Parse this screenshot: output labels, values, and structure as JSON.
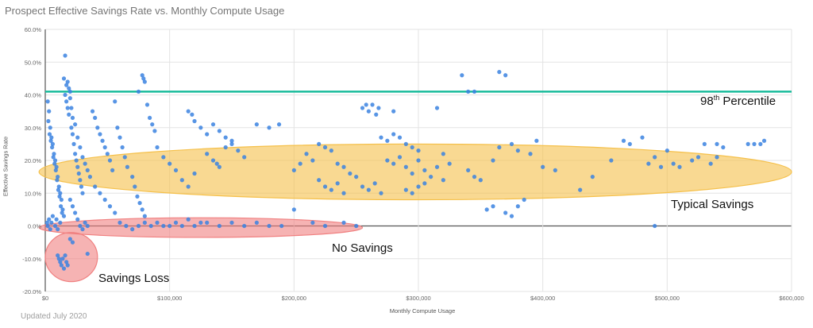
{
  "chart_data": {
    "type": "scatter",
    "title": "Prospect Effective Savings Rate vs. Monthly Compute Usage",
    "xlabel": "Monthly Compute Usage",
    "ylabel": "Effective Savings Rate",
    "xlim": [
      0,
      600000
    ],
    "ylim": [
      -20,
      60
    ],
    "x_ticks": [
      "$0",
      "$100,000",
      "$200,000",
      "$300,000",
      "$400,000",
      "$500,000",
      "$600,000"
    ],
    "y_ticks": [
      "60.0%",
      "50.0%",
      "40.0%",
      "30.0%",
      "20.0%",
      "10.0%",
      "0.0%",
      "-10.0%",
      "-20.0%"
    ],
    "grid": true,
    "point_color": "#3b82e0",
    "reference_line": {
      "y": 41,
      "color": "#1abc9c"
    },
    "annotations": {
      "percentile": {
        "base": "98",
        "sup": "th",
        "rest": " Percentile"
      },
      "typical": "Typical Savings",
      "none": "No Savings",
      "loss": "Savings Loss"
    },
    "regions": [
      {
        "label": "Typical Savings",
        "color": "#f5c04a",
        "x": [
          -5000,
          600000
        ],
        "y": [
          8,
          25
        ]
      },
      {
        "label": "No Savings",
        "color": "#f08080",
        "x": [
          -5000,
          255000
        ],
        "y": [
          -3.5,
          2.5
        ]
      },
      {
        "label": "Savings Loss",
        "color": "#f08080",
        "x": [
          0,
          42000
        ],
        "y": [
          -17,
          -2
        ]
      }
    ],
    "points": [
      [
        2000,
        38
      ],
      [
        3000,
        35
      ],
      [
        4000,
        30
      ],
      [
        5000,
        27
      ],
      [
        6000,
        25
      ],
      [
        7000,
        22
      ],
      [
        8000,
        20
      ],
      [
        9000,
        18
      ],
      [
        10000,
        15
      ],
      [
        11000,
        12
      ],
      [
        12000,
        10
      ],
      [
        13000,
        8
      ],
      [
        14000,
        5
      ],
      [
        15000,
        3
      ],
      [
        2500,
        32
      ],
      [
        3500,
        28
      ],
      [
        4500,
        26
      ],
      [
        5500,
        24
      ],
      [
        6500,
        21
      ],
      [
        7500,
        19
      ],
      [
        8500,
        17
      ],
      [
        9500,
        14
      ],
      [
        10500,
        11
      ],
      [
        11500,
        9
      ],
      [
        12500,
        6
      ],
      [
        13500,
        4
      ],
      [
        1500,
        1
      ],
      [
        2000,
        0
      ],
      [
        3000,
        2
      ],
      [
        4000,
        -1
      ],
      [
        5000,
        1
      ],
      [
        6000,
        3
      ],
      [
        8000,
        0
      ],
      [
        9000,
        2
      ],
      [
        10000,
        -1
      ],
      [
        12000,
        1
      ],
      [
        16000,
        40
      ],
      [
        17000,
        38
      ],
      [
        18000,
        36
      ],
      [
        19000,
        34
      ],
      [
        20000,
        41
      ],
      [
        15000,
        45
      ],
      [
        16000,
        52
      ],
      [
        17000,
        43
      ],
      [
        18000,
        44
      ],
      [
        19000,
        42
      ],
      [
        20000,
        39
      ],
      [
        21000,
        30
      ],
      [
        22000,
        28
      ],
      [
        23000,
        25
      ],
      [
        24000,
        22
      ],
      [
        25000,
        20
      ],
      [
        26000,
        18
      ],
      [
        27000,
        16
      ],
      [
        28000,
        14
      ],
      [
        29000,
        12
      ],
      [
        30000,
        10
      ],
      [
        21000,
        36
      ],
      [
        22000,
        33
      ],
      [
        24000,
        31
      ],
      [
        26000,
        27
      ],
      [
        28000,
        24
      ],
      [
        30000,
        21
      ],
      [
        32000,
        19
      ],
      [
        34000,
        17
      ],
      [
        36000,
        15
      ],
      [
        20000,
        8
      ],
      [
        22000,
        6
      ],
      [
        24000,
        4
      ],
      [
        26000,
        2
      ],
      [
        28000,
        0
      ],
      [
        30000,
        -1
      ],
      [
        32000,
        1
      ],
      [
        34000,
        0
      ],
      [
        10000,
        -9
      ],
      [
        11000,
        -10
      ],
      [
        12000,
        -11
      ],
      [
        13000,
        -12
      ],
      [
        14000,
        -10
      ],
      [
        15000,
        -13
      ],
      [
        16000,
        -9
      ],
      [
        17000,
        -11
      ],
      [
        18000,
        -12
      ],
      [
        20000,
        -4
      ],
      [
        22000,
        -5
      ],
      [
        34000,
        -8.5
      ],
      [
        38000,
        35
      ],
      [
        40000,
        33
      ],
      [
        42000,
        30
      ],
      [
        44000,
        28
      ],
      [
        46000,
        26
      ],
      [
        48000,
        24
      ],
      [
        50000,
        22
      ],
      [
        52000,
        20
      ],
      [
        54000,
        17
      ],
      [
        56000,
        38
      ],
      [
        58000,
        30
      ],
      [
        60000,
        27
      ],
      [
        62000,
        24
      ],
      [
        64000,
        21
      ],
      [
        66000,
        18
      ],
      [
        70000,
        15
      ],
      [
        72000,
        12
      ],
      [
        74000,
        9
      ],
      [
        76000,
        7
      ],
      [
        78000,
        5
      ],
      [
        80000,
        3
      ],
      [
        75000,
        41
      ],
      [
        78000,
        46
      ],
      [
        79000,
        45
      ],
      [
        80000,
        44
      ],
      [
        82000,
        37
      ],
      [
        84000,
        33
      ],
      [
        86000,
        31
      ],
      [
        88000,
        29
      ],
      [
        40000,
        12
      ],
      [
        44000,
        10
      ],
      [
        48000,
        8
      ],
      [
        52000,
        6
      ],
      [
        56000,
        4
      ],
      [
        60000,
        1
      ],
      [
        65000,
        0
      ],
      [
        70000,
        -1
      ],
      [
        75000,
        0
      ],
      [
        80000,
        1
      ],
      [
        85000,
        0
      ],
      [
        90000,
        1
      ],
      [
        95000,
        0
      ],
      [
        100000,
        0
      ],
      [
        105000,
        1
      ],
      [
        110000,
        0
      ],
      [
        115000,
        2
      ],
      [
        120000,
        0
      ],
      [
        125000,
        1
      ],
      [
        90000,
        24
      ],
      [
        95000,
        21
      ],
      [
        100000,
        19
      ],
      [
        105000,
        17
      ],
      [
        110000,
        14
      ],
      [
        115000,
        12
      ],
      [
        120000,
        16
      ],
      [
        115000,
        35
      ],
      [
        118000,
        34
      ],
      [
        120000,
        32
      ],
      [
        125000,
        30
      ],
      [
        130000,
        28
      ],
      [
        135000,
        31
      ],
      [
        140000,
        29
      ],
      [
        145000,
        27
      ],
      [
        150000,
        26
      ],
      [
        130000,
        22
      ],
      [
        135000,
        20
      ],
      [
        138000,
        19
      ],
      [
        140000,
        18
      ],
      [
        145000,
        24
      ],
      [
        150000,
        25
      ],
      [
        155000,
        23
      ],
      [
        160000,
        21
      ],
      [
        170000,
        31
      ],
      [
        180000,
        30
      ],
      [
        188000,
        31
      ],
      [
        130000,
        1
      ],
      [
        140000,
        0
      ],
      [
        150000,
        1
      ],
      [
        160000,
        0
      ],
      [
        170000,
        1
      ],
      [
        180000,
        0
      ],
      [
        190000,
        0
      ],
      [
        200000,
        5
      ],
      [
        200000,
        17
      ],
      [
        205000,
        19
      ],
      [
        210000,
        22
      ],
      [
        215000,
        20
      ],
      [
        220000,
        25
      ],
      [
        225000,
        24
      ],
      [
        230000,
        23
      ],
      [
        235000,
        19
      ],
      [
        240000,
        18
      ],
      [
        245000,
        16
      ],
      [
        220000,
        14
      ],
      [
        225000,
        12
      ],
      [
        230000,
        11
      ],
      [
        235000,
        13
      ],
      [
        240000,
        10
      ],
      [
        250000,
        15
      ],
      [
        255000,
        12
      ],
      [
        260000,
        11
      ],
      [
        265000,
        13
      ],
      [
        270000,
        10
      ],
      [
        215000,
        1
      ],
      [
        225000,
        0
      ],
      [
        240000,
        1
      ],
      [
        250000,
        0
      ],
      [
        255000,
        36
      ],
      [
        258000,
        37
      ],
      [
        260000,
        35
      ],
      [
        263000,
        37
      ],
      [
        266000,
        34
      ],
      [
        268000,
        36
      ],
      [
        280000,
        35
      ],
      [
        270000,
        27
      ],
      [
        275000,
        26
      ],
      [
        280000,
        28
      ],
      [
        285000,
        27
      ],
      [
        290000,
        25
      ],
      [
        295000,
        24
      ],
      [
        300000,
        23
      ],
      [
        275000,
        20
      ],
      [
        280000,
        19
      ],
      [
        285000,
        21
      ],
      [
        290000,
        18
      ],
      [
        295000,
        16
      ],
      [
        300000,
        20
      ],
      [
        305000,
        17
      ],
      [
        310000,
        15
      ],
      [
        315000,
        18
      ],
      [
        320000,
        14
      ],
      [
        290000,
        11
      ],
      [
        295000,
        10
      ],
      [
        300000,
        12
      ],
      [
        305000,
        13
      ],
      [
        315000,
        36
      ],
      [
        335000,
        46
      ],
      [
        340000,
        41
      ],
      [
        345000,
        41
      ],
      [
        365000,
        47
      ],
      [
        370000,
        46
      ],
      [
        320000,
        22
      ],
      [
        325000,
        19
      ],
      [
        340000,
        17
      ],
      [
        345000,
        15
      ],
      [
        350000,
        14
      ],
      [
        355000,
        5
      ],
      [
        360000,
        6
      ],
      [
        370000,
        4
      ],
      [
        375000,
        3
      ],
      [
        380000,
        6
      ],
      [
        385000,
        8
      ],
      [
        360000,
        20
      ],
      [
        365000,
        24
      ],
      [
        375000,
        25
      ],
      [
        380000,
        23
      ],
      [
        390000,
        22
      ],
      [
        395000,
        26
      ],
      [
        400000,
        18
      ],
      [
        410000,
        17
      ],
      [
        430000,
        11
      ],
      [
        440000,
        15
      ],
      [
        455000,
        20
      ],
      [
        465000,
        26
      ],
      [
        470000,
        25
      ],
      [
        480000,
        27
      ],
      [
        485000,
        19
      ],
      [
        490000,
        21
      ],
      [
        495000,
        18
      ],
      [
        500000,
        23
      ],
      [
        505000,
        19
      ],
      [
        510000,
        18
      ],
      [
        520000,
        20
      ],
      [
        525000,
        21
      ],
      [
        530000,
        25
      ],
      [
        535000,
        19
      ],
      [
        540000,
        21
      ],
      [
        540000,
        25
      ],
      [
        545000,
        24
      ],
      [
        565000,
        25
      ],
      [
        570000,
        25
      ],
      [
        575000,
        25
      ],
      [
        578000,
        26
      ],
      [
        490000,
        0
      ]
    ]
  },
  "footer": "Updated July 2020"
}
